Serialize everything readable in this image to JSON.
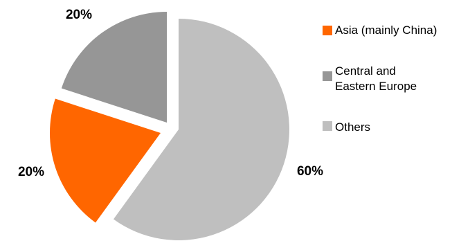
{
  "chart_data": {
    "type": "pie",
    "title": "",
    "slices": [
      {
        "name": "Others",
        "value": 60,
        "label": "60%",
        "color": "#bfbfbf"
      },
      {
        "name": "Asia (mainly China)",
        "value": 20,
        "label": "20%",
        "color": "#ff6600"
      },
      {
        "name": "Central and Eastern Europe",
        "value": 20,
        "label": "20%",
        "color": "#969696"
      }
    ],
    "legend": {
      "placement": "right",
      "entries": [
        {
          "lines": [
            "Asia (mainly China)"
          ],
          "color": "#ff6600"
        },
        {
          "lines": [
            "Central and",
            "Eastern Europe"
          ],
          "color": "#969696"
        },
        {
          "lines": [
            "Others"
          ],
          "color": "#bfbfbf"
        }
      ]
    }
  }
}
